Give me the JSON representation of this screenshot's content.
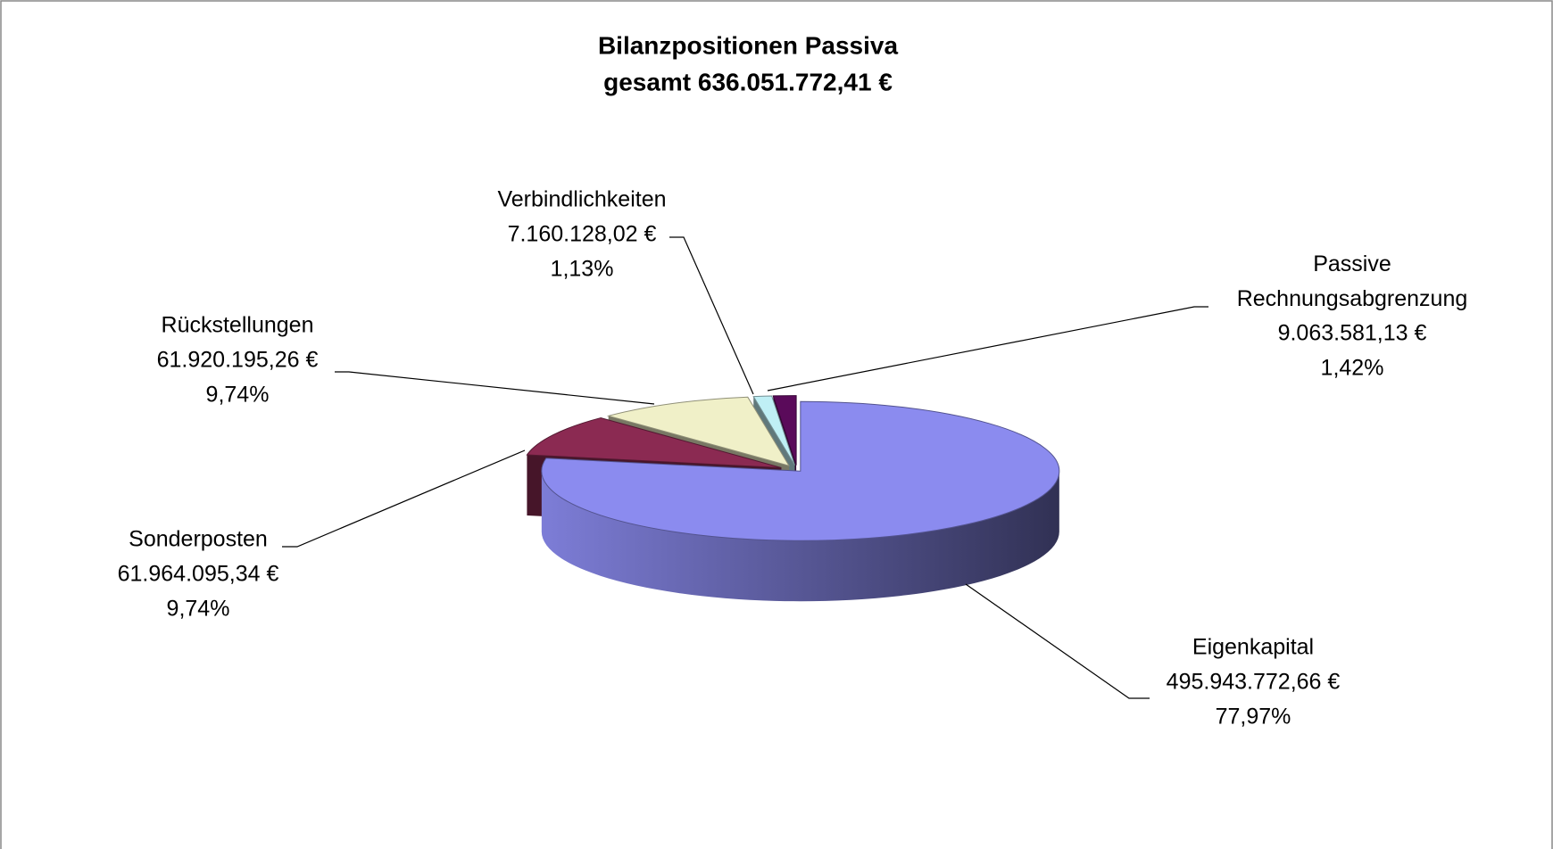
{
  "chart_data": {
    "type": "pie",
    "title": "Bilanzpositionen Passiva",
    "subtitle": "gesamt 636.051.772,41 €",
    "categories": [
      "Eigenkapital",
      "Sonderposten",
      "Rückstellungen",
      "Verbindlichkeiten",
      "Passive Rechnungsabgrenzung"
    ],
    "values": [
      77.97,
      9.74,
      9.74,
      1.13,
      1.42
    ],
    "value_labels": [
      "77,97%",
      "9,74%",
      "9,74%",
      "1,13%",
      "1,42%"
    ],
    "amounts": [
      495943772.66,
      61964095.34,
      61920195.26,
      7160128.02,
      9063581.13
    ],
    "amount_labels": [
      "495.943.772,66 €",
      "61.964.095,34 €",
      "61.920.195,26 €",
      "7.160.128,02 €",
      "9.063.581,13 €"
    ],
    "colors": [
      "#8b8bef",
      "#8b2a52",
      "#f0f0c8",
      "#bfeff5",
      "#5a0a5a"
    ]
  }
}
